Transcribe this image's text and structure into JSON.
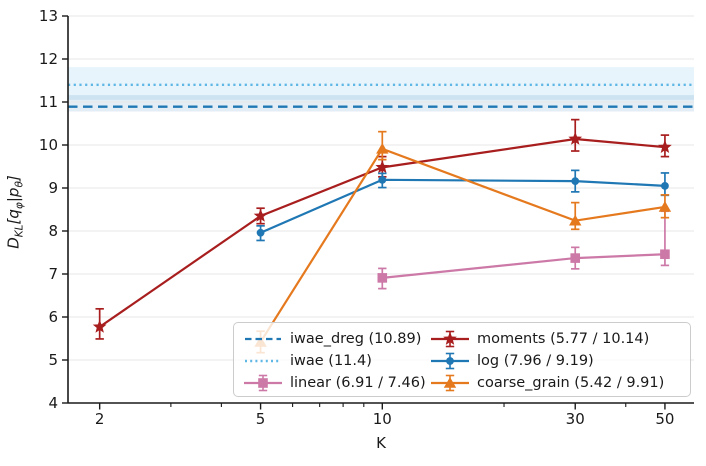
{
  "figure": {
    "background": "#ffffff",
    "text_color": "#1a1a1a",
    "grid_color": "#e7e7e7",
    "spine_color": "#1a1a1a"
  },
  "chart_data": {
    "type": "line",
    "title": "",
    "xlabel": "K",
    "ylabel": "D_KL[q_phi|p_theta]",
    "ylabel_parts": {
      "D": "D",
      "KL": "KL",
      "open": "[",
      "q": "q",
      "phi": "φ",
      "bar": "|",
      "p": "p",
      "theta": "θ",
      "close": "]"
    },
    "x_scale": "log",
    "xlim": [
      1.67,
      59
    ],
    "ylim": [
      4,
      13
    ],
    "xticks": [
      2,
      5,
      10,
      30,
      50
    ],
    "xticks_minor": [
      3,
      4,
      6,
      7,
      8,
      9,
      20,
      40
    ],
    "yticks": [
      4,
      5,
      6,
      7,
      8,
      9,
      10,
      11,
      12,
      13
    ],
    "grid": "horizontal",
    "hlines": [
      {
        "name": "iwae",
        "value": 11.4,
        "style": "dotted",
        "color": "#5FB7E6",
        "band": [
          11.05,
          11.81
        ],
        "band_opacity": 0.15
      },
      {
        "name": "iwae_dreg",
        "value": 10.89,
        "style": "dashed",
        "color": "#1F77B4",
        "band": [
          10.78,
          11.16
        ],
        "band_opacity": 0.13
      }
    ],
    "series": [
      {
        "name": "linear",
        "color": "#CC79A7",
        "marker": "square",
        "points": [
          {
            "x": 10,
            "y": 6.91,
            "err": [
              0.25,
              0.22
            ]
          },
          {
            "x": 30,
            "y": 7.37,
            "err": [
              0.25,
              0.25
            ]
          },
          {
            "x": 50,
            "y": 7.46,
            "err": [
              0.26,
              1.0
            ]
          }
        ]
      },
      {
        "name": "moments",
        "color": "#A81E1E",
        "marker": "star",
        "points": [
          {
            "x": 2,
            "y": 5.77,
            "err": [
              0.28,
              0.42
            ]
          },
          {
            "x": 5,
            "y": 8.35,
            "err": [
              0.18,
              0.18
            ]
          },
          {
            "x": 10,
            "y": 9.48,
            "err": [
              0.22,
              0.25
            ]
          },
          {
            "x": 30,
            "y": 10.14,
            "err": [
              0.28,
              0.45
            ]
          },
          {
            "x": 50,
            "y": 9.95,
            "err": [
              0.22,
              0.28
            ]
          }
        ]
      },
      {
        "name": "log",
        "color": "#1F77B4",
        "marker": "circle",
        "points": [
          {
            "x": 5,
            "y": 7.96,
            "err": [
              0.18,
              0.16
            ]
          },
          {
            "x": 10,
            "y": 9.19,
            "err": [
              0.18,
              0.15
            ]
          },
          {
            "x": 30,
            "y": 9.16,
            "err": [
              0.25,
              0.25
            ]
          },
          {
            "x": 50,
            "y": 9.05,
            "err": [
              0.22,
              0.3
            ]
          }
        ]
      },
      {
        "name": "coarse_grain",
        "color": "#E5791E",
        "marker": "triangle",
        "points": [
          {
            "x": 5,
            "y": 5.42,
            "err": [
              0.25,
              0.25
            ]
          },
          {
            "x": 10,
            "y": 9.91,
            "err": [
              0.25,
              0.4
            ]
          },
          {
            "x": 30,
            "y": 8.24,
            "err": [
              0.2,
              0.42
            ]
          },
          {
            "x": 50,
            "y": 8.56,
            "err": [
              0.25,
              0.28
            ]
          }
        ]
      }
    ],
    "legend": {
      "position": "lower right",
      "entries": [
        {
          "name": "iwae-dreg",
          "label": "iwae_dreg (10.89)",
          "handle": "dashed-line",
          "color": "#1F77B4"
        },
        {
          "name": "iwae",
          "label": "iwae (11.4)",
          "handle": "dotted-line",
          "color": "#5FB7E6"
        },
        {
          "name": "linear",
          "label": "linear (6.91 / 7.46)",
          "handle": "errorbar-square",
          "color": "#CC79A7"
        },
        {
          "name": "moments",
          "label": "moments (5.77 / 10.14)",
          "handle": "errorbar-star",
          "color": "#A81E1E"
        },
        {
          "name": "log",
          "label": "log (7.96 / 9.19)",
          "handle": "errorbar-circle",
          "color": "#1F77B4"
        },
        {
          "name": "coarse-grain",
          "label": "coarse_grain (5.42 / 9.91)",
          "handle": "errorbar-triangle",
          "color": "#E5791E"
        }
      ]
    }
  }
}
